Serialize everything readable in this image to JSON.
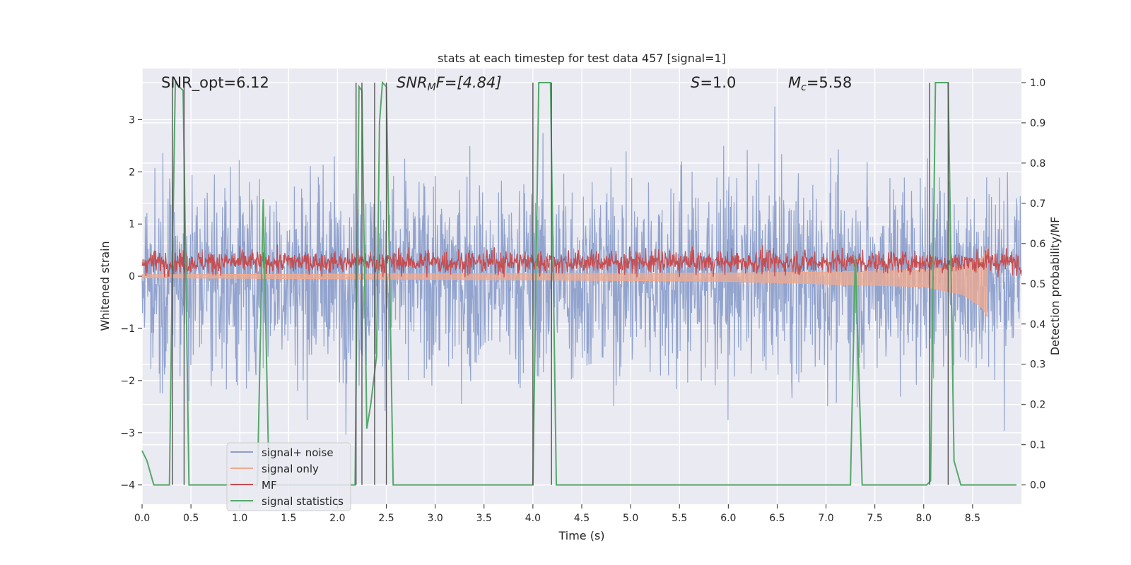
{
  "chart_data": {
    "type": "line",
    "title": "stats at each timestep for test data 457 [signal=1]",
    "xlabel": "Time (s)",
    "ylabel_left": "Whitened strain",
    "ylabel_right": "Detection probability/MF",
    "xlim": [
      0,
      9.0
    ],
    "ylim_left": [
      -4.37,
      3.98
    ],
    "ylim_right": [
      -0.048,
      1.035
    ],
    "x_ticks": [
      "0.0",
      "0.5",
      "1.0",
      "1.5",
      "2.0",
      "2.5",
      "3.0",
      "3.5",
      "4.0",
      "4.5",
      "5.0",
      "5.5",
      "6.0",
      "6.5",
      "7.0",
      "7.5",
      "8.0",
      "8.5"
    ],
    "x_tick_values": [
      0,
      0.5,
      1.0,
      1.5,
      2.0,
      2.5,
      3.0,
      3.5,
      4.0,
      4.5,
      5.0,
      5.5,
      6.0,
      6.5,
      7.0,
      7.5,
      8.0,
      8.5
    ],
    "y_ticks_left": [
      "−4",
      "−3",
      "−2",
      "−1",
      "0",
      "1",
      "2",
      "3"
    ],
    "y_tick_values_left": [
      -4,
      -3,
      -2,
      -1,
      0,
      1,
      2,
      3
    ],
    "y_ticks_right": [
      "0.0",
      "0.1",
      "0.2",
      "0.3",
      "0.4",
      "0.5",
      "0.6",
      "0.7",
      "0.8",
      "0.9",
      "1.0"
    ],
    "y_tick_values_right": [
      0,
      0.1,
      0.2,
      0.3,
      0.4,
      0.5,
      0.6,
      0.7,
      0.8,
      0.9,
      1.0
    ],
    "grid": true,
    "legend_position": "lower-left",
    "annotations": {
      "snr_opt": "SNR_opt=6.12",
      "snr_mf_prefix": "SNR",
      "snr_mf_sub": "M",
      "snr_mf_suffix": "F=[4.84]",
      "s_var": "S",
      "s_val": "=1.0",
      "mc_var": "M",
      "mc_sub": "c",
      "mc_val": "=5.58"
    },
    "series": [
      {
        "name": "signal+ noise",
        "color": "#8da0cb",
        "noise_amplitude": 1.0,
        "axis": "left"
      },
      {
        "name": "signal only",
        "color": "#f0a98e",
        "axis": "left",
        "envelope_x": [
          0,
          2,
          4,
          6,
          7,
          8,
          8.4,
          8.6,
          8.65
        ],
        "envelope_upper": [
          0.03,
          0.04,
          0.05,
          0.06,
          0.08,
          0.12,
          0.2,
          0.35,
          0.55
        ],
        "envelope_lower": [
          -0.03,
          -0.05,
          -0.07,
          -0.1,
          -0.15,
          -0.2,
          -0.35,
          -0.6,
          -0.78
        ]
      },
      {
        "name": "MF",
        "color": "#c44e52",
        "axis": "left",
        "mean_strain": 0.27,
        "amplitude": 0.16
      },
      {
        "name": "signal statistics",
        "color": "#55a868",
        "axis": "right",
        "x": [
          0,
          0.05,
          0.12,
          0.28,
          0.31,
          0.34,
          0.38,
          0.42,
          0.48,
          1.18,
          1.24,
          1.3,
          2.18,
          2.22,
          2.25,
          2.3,
          2.34,
          2.4,
          2.43,
          2.46,
          2.5,
          2.57,
          4.0,
          4.06,
          4.18,
          4.24,
          7.25,
          7.3,
          7.37,
          8.03,
          8.07,
          8.12,
          8.25,
          8.31,
          8.38,
          8.95
        ],
        "y": [
          0.085,
          0.06,
          0.0,
          0.0,
          0.55,
          1.0,
          0.99,
          0.98,
          0.0,
          0.0,
          0.71,
          0.0,
          0.0,
          0.99,
          0.98,
          0.14,
          0.2,
          0.32,
          0.9,
          1.0,
          0.99,
          0.0,
          0.0,
          1.0,
          1.0,
          0.0,
          0.0,
          0.57,
          0.0,
          0.0,
          0.01,
          1.0,
          1.0,
          0.06,
          0.0,
          0.0
        ]
      }
    ],
    "vertical_lines_x": [
      0.31,
      0.43,
      2.19,
      2.25,
      2.38,
      2.5,
      4.0,
      4.19,
      8.06,
      8.25
    ],
    "vertical_line_color": "#555555"
  }
}
